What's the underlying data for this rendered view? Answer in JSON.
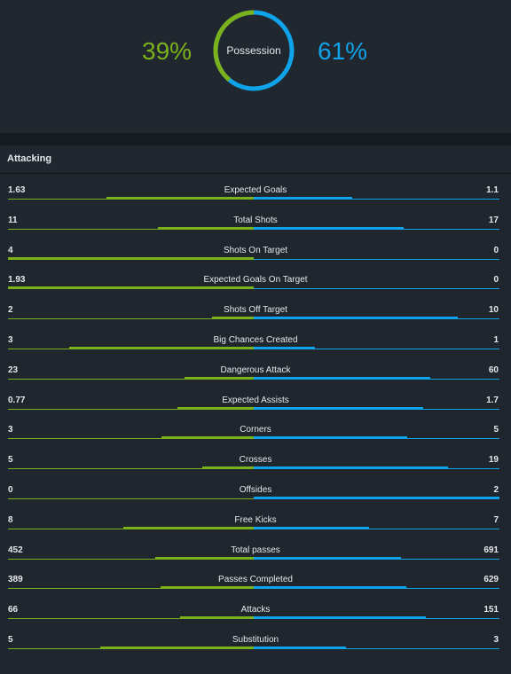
{
  "colors": {
    "home": "#7bb21c",
    "away": "#0fa3ea"
  },
  "possession": {
    "label": "Possession",
    "home": 39,
    "away": 61,
    "home_text": "39%",
    "away_text": "61%"
  },
  "section": {
    "title": "Attacking"
  },
  "stats": [
    {
      "label": "Expected Goals",
      "home": "1.63",
      "away": "1.1",
      "home_frac": 0.6,
      "away_frac": 0.4
    },
    {
      "label": "Total Shots",
      "home": "11",
      "away": "17",
      "home_frac": 0.39,
      "away_frac": 0.61
    },
    {
      "label": "Shots On Target",
      "home": "4",
      "away": "0",
      "home_frac": 1.0,
      "away_frac": 0.0
    },
    {
      "label": "Expected Goals On Target",
      "home": "1.93",
      "away": "0",
      "home_frac": 1.0,
      "away_frac": 0.0
    },
    {
      "label": "Shots Off Target",
      "home": "2",
      "away": "10",
      "home_frac": 0.17,
      "away_frac": 0.83
    },
    {
      "label": "Big Chances Created",
      "home": "3",
      "away": "1",
      "home_frac": 0.75,
      "away_frac": 0.25
    },
    {
      "label": "Dangerous Attack",
      "home": "23",
      "away": "60",
      "home_frac": 0.28,
      "away_frac": 0.72
    },
    {
      "label": "Expected Assists",
      "home": "0.77",
      "away": "1.7",
      "home_frac": 0.31,
      "away_frac": 0.69
    },
    {
      "label": "Corners",
      "home": "3",
      "away": "5",
      "home_frac": 0.375,
      "away_frac": 0.625
    },
    {
      "label": "Crosses",
      "home": "5",
      "away": "19",
      "home_frac": 0.21,
      "away_frac": 0.79
    },
    {
      "label": "Offsides",
      "home": "0",
      "away": "2",
      "home_frac": 0.0,
      "away_frac": 1.0
    },
    {
      "label": "Free Kicks",
      "home": "8",
      "away": "7",
      "home_frac": 0.53,
      "away_frac": 0.47
    },
    {
      "label": "Total passes",
      "home": "452",
      "away": "691",
      "home_frac": 0.4,
      "away_frac": 0.6
    },
    {
      "label": "Passes Completed",
      "home": "389",
      "away": "629",
      "home_frac": 0.38,
      "away_frac": 0.62
    },
    {
      "label": "Attacks",
      "home": "66",
      "away": "151",
      "home_frac": 0.3,
      "away_frac": 0.7
    },
    {
      "label": "Substitution",
      "home": "5",
      "away": "3",
      "home_frac": 0.625,
      "away_frac": 0.375
    }
  ]
}
